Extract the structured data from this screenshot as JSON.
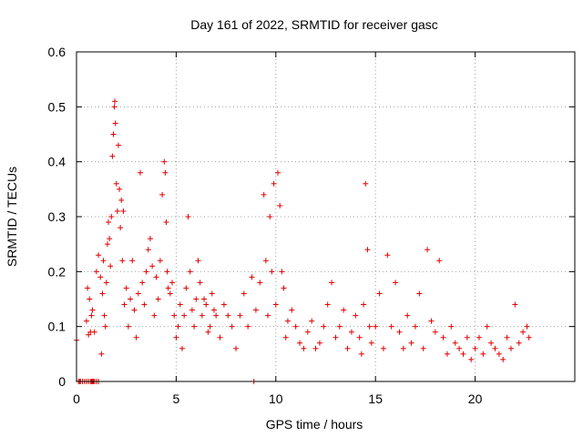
{
  "chart_data": {
    "type": "scatter",
    "title": "Day 161 of 2022, SRMTID for receiver gasc",
    "xlabel": "GPS time / hours",
    "ylabel": "SRMTID / TECUs",
    "xlim": [
      0,
      25
    ],
    "ylim": [
      0,
      0.6
    ],
    "xticks": [
      0,
      5,
      10,
      15,
      20
    ],
    "yticks": [
      0,
      0.1,
      0.2,
      0.3,
      0.4,
      0.5,
      0.6
    ],
    "xtick_labels": [
      "0",
      "5",
      "10",
      "15",
      "20"
    ],
    "ytick_labels": [
      "0",
      "0.1",
      "0.2",
      "0.3",
      "0.4",
      "0.5",
      "0.6"
    ],
    "grid": true,
    "marker": "+",
    "color": "#e00000",
    "series": [
      {
        "name": "SRMTID",
        "x": [
          0.0,
          0.1,
          0.15,
          0.2,
          0.3,
          0.4,
          0.5,
          0.6,
          0.7,
          0.75,
          0.8,
          0.85,
          0.9,
          1.0,
          1.1,
          0.5,
          0.55,
          0.6,
          0.65,
          0.7,
          0.75,
          0.8,
          0.9,
          1.0,
          1.1,
          1.2,
          1.25,
          1.3,
          1.35,
          1.4,
          1.45,
          1.5,
          1.55,
          1.6,
          1.65,
          1.7,
          1.75,
          1.8,
          1.85,
          1.9,
          1.92,
          1.95,
          2.0,
          2.05,
          2.1,
          2.15,
          2.2,
          2.25,
          2.3,
          2.35,
          2.4,
          2.5,
          2.6,
          2.7,
          2.8,
          2.9,
          3.0,
          3.1,
          3.2,
          3.3,
          3.4,
          3.5,
          3.6,
          3.7,
          3.8,
          3.9,
          4.0,
          4.1,
          4.2,
          4.3,
          4.4,
          4.45,
          4.5,
          4.55,
          4.6,
          4.7,
          4.8,
          4.9,
          5.0,
          5.1,
          5.2,
          5.3,
          5.4,
          5.5,
          5.6,
          5.7,
          5.8,
          5.9,
          6.0,
          6.1,
          6.2,
          6.3,
          6.4,
          6.5,
          6.6,
          6.7,
          6.8,
          6.9,
          7.0,
          7.2,
          7.4,
          7.6,
          7.8,
          8.0,
          8.2,
          8.4,
          8.6,
          8.8,
          8.9,
          9.0,
          9.2,
          9.4,
          9.5,
          9.6,
          9.7,
          9.8,
          9.9,
          10.0,
          10.1,
          10.2,
          10.3,
          10.4,
          10.5,
          10.6,
          10.8,
          11.0,
          11.2,
          11.4,
          11.6,
          11.8,
          12.0,
          12.2,
          12.4,
          12.6,
          12.8,
          13.0,
          13.2,
          13.4,
          13.6,
          13.8,
          14.0,
          14.2,
          14.3,
          14.4,
          14.5,
          14.6,
          14.7,
          14.8,
          15.0,
          15.2,
          15.4,
          15.6,
          15.8,
          16.0,
          16.2,
          16.4,
          16.6,
          16.8,
          17.0,
          17.2,
          17.4,
          17.6,
          17.8,
          18.0,
          18.2,
          18.4,
          18.6,
          18.8,
          19.0,
          19.2,
          19.4,
          19.6,
          19.8,
          20.0,
          20.2,
          20.4,
          20.6,
          20.8,
          21.0,
          21.2,
          21.4,
          21.6,
          21.8,
          22.0,
          22.2,
          22.4,
          22.6,
          22.7
        ],
        "y": [
          0.075,
          0.0,
          0.0,
          0.0,
          0.0,
          0.0,
          0.0,
          0.0,
          0.0,
          0.0,
          0.0,
          0.0,
          0.0,
          0.0,
          0.0,
          0.11,
          0.17,
          0.085,
          0.15,
          0.09,
          0.12,
          0.13,
          0.09,
          0.2,
          0.23,
          0.19,
          0.05,
          0.16,
          0.22,
          0.12,
          0.1,
          0.18,
          0.25,
          0.29,
          0.26,
          0.21,
          0.3,
          0.41,
          0.45,
          0.5,
          0.51,
          0.47,
          0.36,
          0.31,
          0.43,
          0.35,
          0.28,
          0.33,
          0.22,
          0.31,
          0.14,
          0.17,
          0.1,
          0.15,
          0.22,
          0.13,
          0.08,
          0.16,
          0.38,
          0.18,
          0.14,
          0.2,
          0.24,
          0.26,
          0.21,
          0.12,
          0.19,
          0.15,
          0.22,
          0.34,
          0.4,
          0.38,
          0.29,
          0.2,
          0.17,
          0.16,
          0.18,
          0.12,
          0.08,
          0.1,
          0.14,
          0.06,
          0.12,
          0.17,
          0.3,
          0.2,
          0.13,
          0.1,
          0.15,
          0.22,
          0.18,
          0.12,
          0.15,
          0.14,
          0.09,
          0.1,
          0.16,
          0.13,
          0.12,
          0.08,
          0.14,
          0.12,
          0.1,
          0.06,
          0.12,
          0.16,
          0.1,
          0.19,
          0.0,
          0.13,
          0.18,
          0.34,
          0.22,
          0.12,
          0.3,
          0.2,
          0.36,
          0.14,
          0.38,
          0.32,
          0.2,
          0.17,
          0.08,
          0.11,
          0.13,
          0.1,
          0.07,
          0.06,
          0.09,
          0.11,
          0.06,
          0.07,
          0.1,
          0.14,
          0.18,
          0.08,
          0.1,
          0.13,
          0.06,
          0.09,
          0.12,
          0.08,
          0.05,
          0.14,
          0.36,
          0.24,
          0.1,
          0.07,
          0.1,
          0.16,
          0.06,
          0.23,
          0.1,
          0.18,
          0.09,
          0.06,
          0.12,
          0.07,
          0.1,
          0.16,
          0.06,
          0.24,
          0.11,
          0.09,
          0.22,
          0.08,
          0.05,
          0.1,
          0.07,
          0.06,
          0.05,
          0.08,
          0.04,
          0.06,
          0.08,
          0.05,
          0.1,
          0.07,
          0.06,
          0.05,
          0.04,
          0.08,
          0.06,
          0.14,
          0.07,
          0.09,
          0.1,
          0.08
        ]
      }
    ]
  }
}
